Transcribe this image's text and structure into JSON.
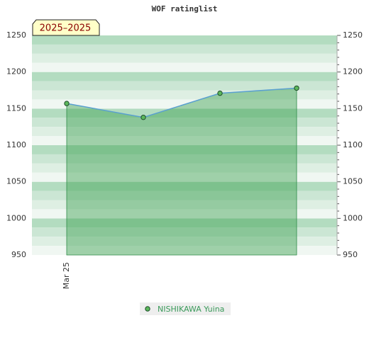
{
  "chart_data": {
    "type": "line",
    "title": "WOF ratinglist",
    "annotation": "2025–2025",
    "categories": [
      "Mar 25",
      null,
      null,
      null
    ],
    "series": [
      {
        "name": "NISHIKAWA Yuina",
        "color": "#5aa0d0",
        "marker_color": "#5cb85c",
        "values": [
          1157,
          1138,
          1171,
          1178
        ]
      }
    ],
    "ylim": [
      950,
      1250
    ],
    "yticks": [
      950,
      1000,
      1050,
      1100,
      1150,
      1200,
      1250
    ],
    "grid": true
  }
}
